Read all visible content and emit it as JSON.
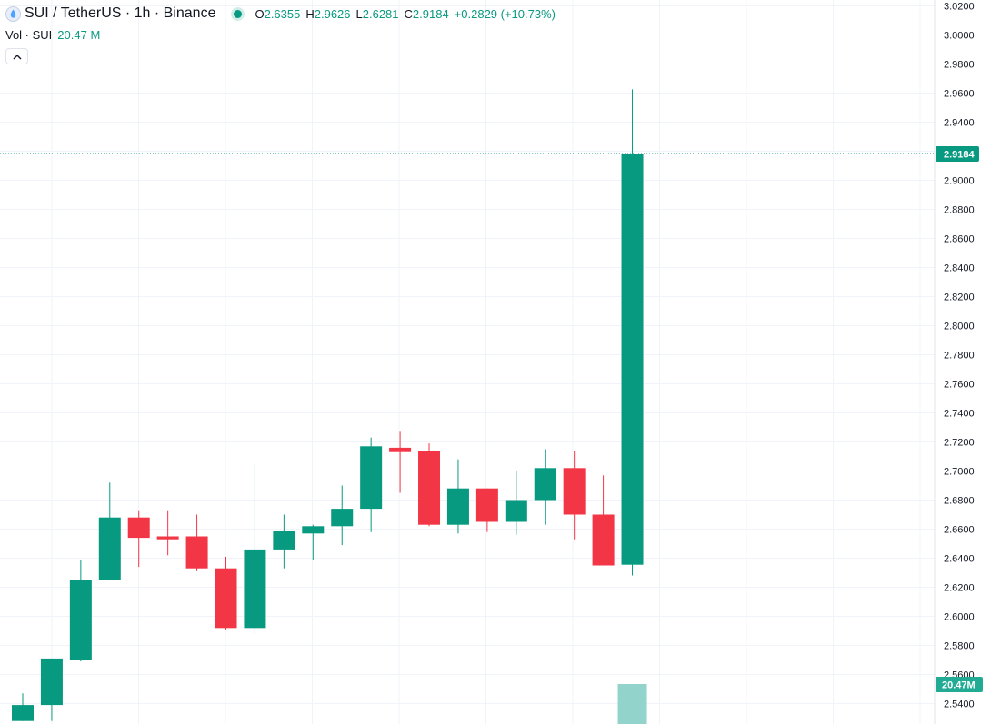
{
  "legend": {
    "symbol_title": "SUI / TetherUS · 1h · Binance",
    "open_label": "O",
    "open_value": "2.6355",
    "high_label": "H",
    "high_value": "2.9626",
    "low_label": "L",
    "low_value": "2.6281",
    "close_label": "C",
    "close_value": "2.9184",
    "change": "+0.2829 (+10.73%)"
  },
  "volume_legend": {
    "label": "Vol · SUI",
    "value": "20.47 M"
  },
  "collapse_button": {
    "label": "^"
  },
  "colors": {
    "up": "#089981",
    "down": "#f23645",
    "grid": "#f0f3fa",
    "volume_up": "#92d3cb",
    "axis_text": "#131722"
  },
  "chart_data": {
    "type": "candlestick",
    "ylim": [
      2.528,
      3.024
    ],
    "y_ticks": [
      "3.0200",
      "3.0000",
      "2.9800",
      "2.9600",
      "2.9400",
      "2.9200",
      "2.9000",
      "2.8800",
      "2.8600",
      "2.8400",
      "2.8200",
      "2.8000",
      "2.7800",
      "2.7600",
      "2.7400",
      "2.7200",
      "2.7000",
      "2.6800",
      "2.6600",
      "2.6400",
      "2.6200",
      "2.6000",
      "2.5800",
      "2.5600",
      "2.5400"
    ],
    "candles": [
      {
        "o": 2.528,
        "h": 2.547,
        "l": 2.528,
        "c": 2.539
      },
      {
        "o": 2.539,
        "h": 2.571,
        "l": 2.528,
        "c": 2.571
      },
      {
        "o": 2.57,
        "h": 2.639,
        "l": 2.569,
        "c": 2.625
      },
      {
        "o": 2.625,
        "h": 2.692,
        "l": 2.625,
        "c": 2.668
      },
      {
        "o": 2.668,
        "h": 2.673,
        "l": 2.634,
        "c": 2.654
      },
      {
        "o": 2.655,
        "h": 2.673,
        "l": 2.642,
        "c": 2.653
      },
      {
        "o": 2.655,
        "h": 2.67,
        "l": 2.631,
        "c": 2.633
      },
      {
        "o": 2.633,
        "h": 2.641,
        "l": 2.591,
        "c": 2.592
      },
      {
        "o": 2.592,
        "h": 2.705,
        "l": 2.588,
        "c": 2.646
      },
      {
        "o": 2.646,
        "h": 2.67,
        "l": 2.633,
        "c": 2.659
      },
      {
        "o": 2.657,
        "h": 2.663,
        "l": 2.639,
        "c": 2.662
      },
      {
        "o": 2.662,
        "h": 2.69,
        "l": 2.649,
        "c": 2.674
      },
      {
        "o": 2.674,
        "h": 2.723,
        "l": 2.658,
        "c": 2.717
      },
      {
        "o": 2.716,
        "h": 2.727,
        "l": 2.685,
        "c": 2.713
      },
      {
        "o": 2.714,
        "h": 2.719,
        "l": 2.662,
        "c": 2.663
      },
      {
        "o": 2.663,
        "h": 2.708,
        "l": 2.657,
        "c": 2.688
      },
      {
        "o": 2.688,
        "h": 2.688,
        "l": 2.658,
        "c": 2.665
      },
      {
        "o": 2.665,
        "h": 2.7,
        "l": 2.656,
        "c": 2.68
      },
      {
        "o": 2.68,
        "h": 2.715,
        "l": 2.663,
        "c": 2.702
      },
      {
        "o": 2.702,
        "h": 2.714,
        "l": 2.653,
        "c": 2.67
      },
      {
        "o": 2.67,
        "h": 2.697,
        "l": 2.635,
        "c": 2.635
      },
      {
        "o": 2.6355,
        "h": 2.9626,
        "l": 2.6281,
        "c": 2.9184
      }
    ],
    "last_price_label": "2.9184",
    "last_volume_label": "20.47M",
    "volume_last_bar": 20.47
  }
}
